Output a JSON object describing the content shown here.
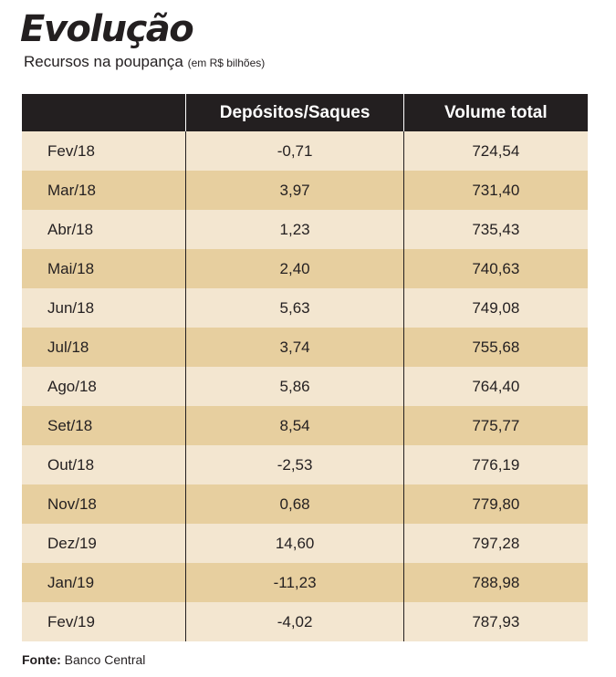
{
  "title": "Evolução",
  "subtitle": "Recursos na poupança",
  "unit": "(em R$ bilhões)",
  "source_label": "Fonte:",
  "source_value": "Banco Central",
  "colors": {
    "header_bg": "#231f20",
    "row_light": "#f3e6d0",
    "row_dark": "#e7cf9f"
  },
  "chart_data": {
    "type": "table",
    "columns": [
      "",
      "Depósitos/Saques",
      "Volume total"
    ],
    "rows": [
      [
        "Fev/18",
        "-0,71",
        "724,54"
      ],
      [
        "Mar/18",
        "3,97",
        "731,40"
      ],
      [
        "Abr/18",
        "1,23",
        "735,43"
      ],
      [
        "Mai/18",
        "2,40",
        "740,63"
      ],
      [
        "Jun/18",
        "5,63",
        "749,08"
      ],
      [
        "Jul/18",
        "3,74",
        "755,68"
      ],
      [
        "Ago/18",
        "5,86",
        "764,40"
      ],
      [
        "Set/18",
        "8,54",
        "775,77"
      ],
      [
        "Out/18",
        "-2,53",
        "776,19"
      ],
      [
        "Nov/18",
        "0,68",
        "779,80"
      ],
      [
        "Dez/19",
        "14,60",
        "797,28"
      ],
      [
        "Jan/19",
        "-11,23",
        "788,98"
      ],
      [
        "Fev/19",
        "-4,02",
        "787,93"
      ]
    ]
  }
}
